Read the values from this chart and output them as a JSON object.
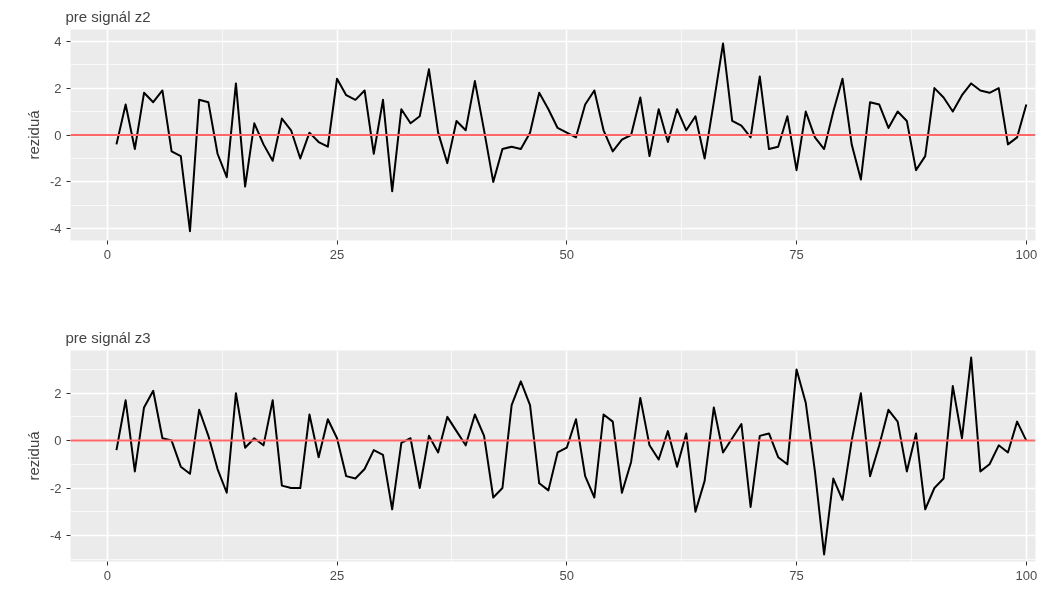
{
  "chart_data": [
    {
      "type": "line",
      "title": "pre signál z2",
      "ylabel": "reziduá",
      "x": [
        1,
        2,
        3,
        4,
        5,
        6,
        7,
        8,
        9,
        10,
        11,
        12,
        13,
        14,
        15,
        16,
        17,
        18,
        19,
        20,
        21,
        22,
        23,
        24,
        25,
        26,
        27,
        28,
        29,
        30,
        31,
        32,
        33,
        34,
        35,
        36,
        37,
        38,
        39,
        40,
        41,
        42,
        43,
        44,
        45,
        46,
        47,
        48,
        49,
        50,
        51,
        52,
        53,
        54,
        55,
        56,
        57,
        58,
        59,
        60,
        61,
        62,
        63,
        64,
        65,
        66,
        67,
        68,
        69,
        70,
        71,
        72,
        73,
        74,
        75,
        76,
        77,
        78,
        79,
        80,
        81,
        82,
        83,
        84,
        85,
        86,
        87,
        88,
        89,
        90,
        91,
        92,
        93,
        94,
        95,
        96,
        97,
        98,
        99,
        100
      ],
      "series": [
        {
          "color": "#000000",
          "values": [
            -0.4,
            1.3,
            -0.6,
            1.8,
            1.4,
            1.9,
            -0.7,
            -0.9,
            -4.1,
            1.5,
            1.4,
            -0.8,
            -1.8,
            2.2,
            -2.2,
            0.5,
            -0.4,
            -1.1,
            0.7,
            0.2,
            -1.0,
            0.1,
            -0.3,
            -0.5,
            2.4,
            1.7,
            1.5,
            1.9,
            -0.8,
            1.5,
            -2.4,
            1.1,
            0.5,
            0.8,
            2.8,
            0.1,
            -1.2,
            0.6,
            0.2,
            2.3,
            0.2,
            -2.0,
            -0.6,
            -0.5,
            -0.6,
            0.1,
            1.8,
            1.1,
            0.3,
            0.1,
            -0.1,
            1.3,
            1.9,
            0.2,
            -0.7,
            -0.2,
            0.0,
            1.6,
            -0.9,
            1.1,
            -0.3,
            1.1,
            0.2,
            0.8,
            -1.0,
            1.4,
            3.9,
            0.6,
            0.4,
            -0.1,
            2.5,
            -0.6,
            -0.5,
            0.8,
            -1.5,
            1.0,
            -0.1,
            -0.6,
            1.0,
            2.4,
            -0.4,
            -1.9,
            1.4,
            1.3,
            0.3,
            1.0,
            0.6,
            -1.5,
            -0.9,
            2.0,
            1.6,
            1.0,
            1.7,
            2.2,
            1.9,
            1.8,
            2.0,
            -0.4,
            -0.1,
            1.3
          ]
        }
      ],
      "xlim": [
        -4,
        101
      ],
      "xticks": [
        0,
        25,
        50,
        75,
        100
      ],
      "ylim": [
        -4.5,
        4.5
      ],
      "yticks": [
        -4,
        -2,
        0,
        2,
        4
      ],
      "ref_lines": [
        {
          "axis": "y",
          "value": 0,
          "color": "#ff6666"
        }
      ],
      "grid": true,
      "line_style": "solid"
    },
    {
      "type": "line",
      "title": "pre signál z3",
      "ylabel": "reziduá",
      "x": [
        1,
        2,
        3,
        4,
        5,
        6,
        7,
        8,
        9,
        10,
        11,
        12,
        13,
        14,
        15,
        16,
        17,
        18,
        19,
        20,
        21,
        22,
        23,
        24,
        25,
        26,
        27,
        28,
        29,
        30,
        31,
        32,
        33,
        34,
        35,
        36,
        37,
        38,
        39,
        40,
        41,
        42,
        43,
        44,
        45,
        46,
        47,
        48,
        49,
        50,
        51,
        52,
        53,
        54,
        55,
        56,
        57,
        58,
        59,
        60,
        61,
        62,
        63,
        64,
        65,
        66,
        67,
        68,
        69,
        70,
        71,
        72,
        73,
        74,
        75,
        76,
        77,
        78,
        79,
        80,
        81,
        82,
        83,
        84,
        85,
        86,
        87,
        88,
        89,
        90,
        91,
        92,
        93,
        94,
        95,
        96,
        97,
        98,
        99,
        100
      ],
      "series": [
        {
          "color": "#000000",
          "values": [
            -0.4,
            1.7,
            -1.3,
            1.4,
            2.1,
            0.1,
            0.0,
            -1.1,
            -1.4,
            1.3,
            0.2,
            -1.2,
            -2.2,
            2.0,
            -0.3,
            0.1,
            -0.2,
            1.7,
            -1.9,
            -2.0,
            -2.0,
            1.1,
            -0.7,
            0.9,
            0.1,
            -1.5,
            -1.6,
            -1.2,
            -0.4,
            -0.6,
            -2.9,
            -0.1,
            0.1,
            -2.0,
            0.2,
            -0.5,
            1.0,
            0.4,
            -0.2,
            1.1,
            0.2,
            -2.4,
            -2.0,
            1.5,
            2.5,
            1.5,
            -1.8,
            -2.1,
            -0.5,
            -0.3,
            0.9,
            -1.5,
            -2.4,
            1.1,
            0.8,
            -2.2,
            -0.9,
            1.8,
            -0.2,
            -0.8,
            0.4,
            -1.1,
            0.3,
            -3.0,
            -1.7,
            1.4,
            -0.5,
            0.1,
            0.7,
            -2.8,
            0.2,
            0.3,
            -0.7,
            -1.0,
            3.0,
            1.6,
            -1.3,
            -4.8,
            -1.6,
            -2.5,
            0.0,
            2.0,
            -1.5,
            -0.2,
            1.3,
            0.8,
            -1.3,
            0.3,
            -2.9,
            -2.0,
            -1.6,
            2.3,
            0.1,
            3.5,
            -1.3,
            -1.0,
            -0.2,
            -0.5,
            0.8,
            0.0
          ]
        }
      ],
      "xlim": [
        -4,
        101
      ],
      "xticks": [
        0,
        25,
        50,
        75,
        100
      ],
      "ylim": [
        -5.1,
        3.8
      ],
      "yticks": [
        -4,
        -2,
        0,
        2
      ],
      "ref_lines": [
        {
          "axis": "y",
          "value": 0,
          "color": "#ff6666"
        }
      ],
      "grid": true,
      "line_style": "solid"
    }
  ]
}
